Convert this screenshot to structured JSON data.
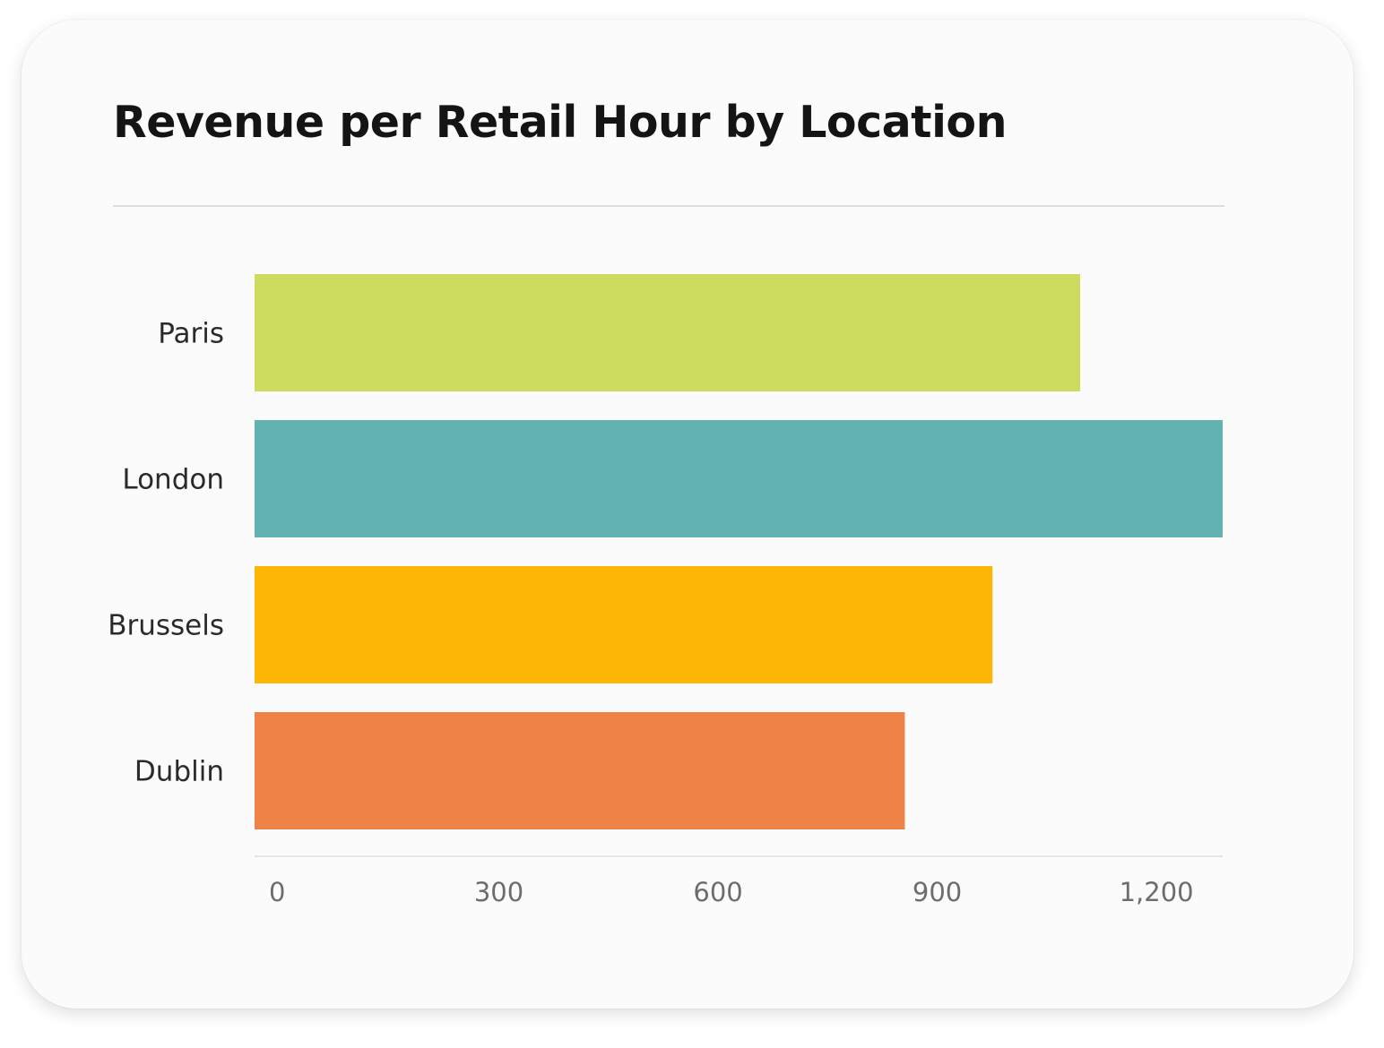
{
  "chart_data": {
    "type": "bar",
    "orientation": "horizontal",
    "title": "Revenue per Retail Hour by Location",
    "xlabel": "",
    "ylabel": "",
    "categories": [
      "Paris",
      "London",
      "Brussels",
      "Dublin"
    ],
    "values": [
      1130,
      1325,
      1010,
      890
    ],
    "colors": [
      "#cddc5e",
      "#62b2b2",
      "#fdb506",
      "#ee8247"
    ],
    "xlim": [
      0,
      1325
    ],
    "xticks": [
      0,
      300,
      600,
      900,
      1200
    ],
    "xtick_labels": [
      "0",
      "300",
      "600",
      "900",
      "1,200"
    ],
    "grid": false,
    "legend": "none"
  }
}
